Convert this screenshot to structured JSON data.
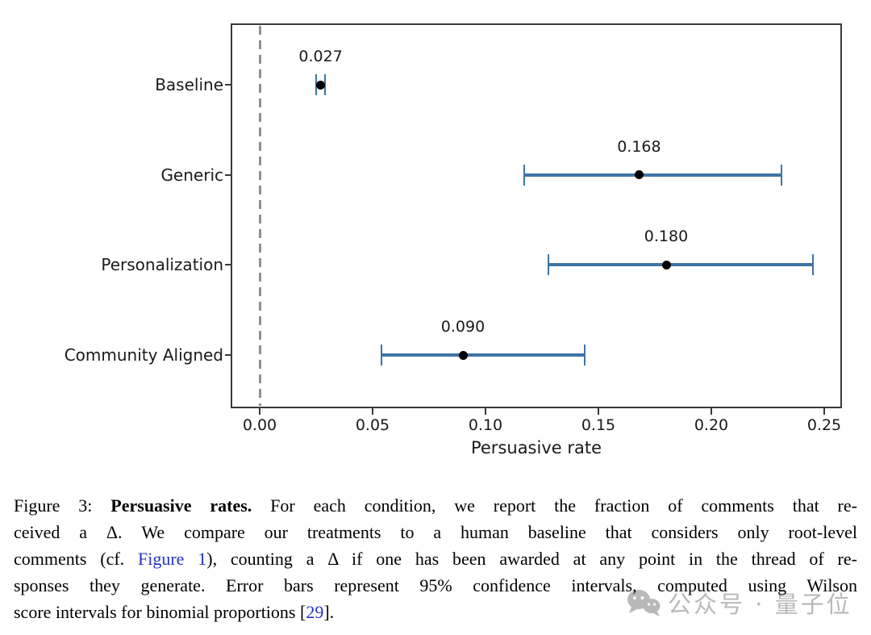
{
  "chart_data": {
    "type": "scatter",
    "orientation": "horizontal",
    "title": "",
    "xlabel": "Persuasive rate",
    "categories": [
      "Baseline",
      "Generic",
      "Personalization",
      "Community Aligned"
    ],
    "values": [
      0.027,
      0.168,
      0.18,
      0.09
    ],
    "ci_low": [
      0.025,
      0.117,
      0.128,
      0.054
    ],
    "ci_high": [
      0.029,
      0.231,
      0.245,
      0.144
    ],
    "point_labels": [
      "0.027",
      "0.168",
      "0.180",
      "0.090"
    ],
    "x_ticks": [
      0.0,
      0.05,
      0.1,
      0.15,
      0.2,
      0.25
    ],
    "x_tick_labels": [
      "0.00",
      "0.05",
      "0.10",
      "0.15",
      "0.20",
      "0.25"
    ],
    "xlim": [
      -0.0125,
      0.2575
    ],
    "reference_line_x": 0.0,
    "grid": false,
    "legend_position": "none",
    "colors": {
      "error_bar": "#3d74a6",
      "marker": "#000000",
      "reference_line": "#909090",
      "axis": "#3a3a3a"
    }
  },
  "caption": {
    "link_color": "#2433c2",
    "lines": [
      {
        "justify": true,
        "segments": [
          {
            "text": "Figure 3: "
          },
          {
            "text": "Persuasive rates.",
            "style": "bold"
          },
          {
            "text": " For each condition, we report the fraction of comments that re-"
          }
        ]
      },
      {
        "justify": true,
        "segments": [
          {
            "text": "ceived a Δ. We compare our treatments to a human baseline that considers only root-level"
          }
        ]
      },
      {
        "justify": true,
        "segments": [
          {
            "text": "comments (cf. "
          },
          {
            "text": "Figure 1",
            "style": "link",
            "name": "figure-1-link"
          },
          {
            "text": "), counting a Δ if one has been awarded at any point in the thread of re-"
          }
        ]
      },
      {
        "justify": true,
        "segments": [
          {
            "text": "sponses they generate. Error bars represent 95% confidence intervals, computed using Wilson"
          }
        ]
      },
      {
        "justify": false,
        "segments": [
          {
            "text": "score intervals for binomial proportions ["
          },
          {
            "text": "29",
            "style": "link",
            "name": "citation-29-link"
          },
          {
            "text": "]."
          }
        ]
      }
    ]
  },
  "watermark": {
    "text": "公众号 · 量子位",
    "icon": "wechat-icon",
    "color": "#b9b9b9"
  }
}
